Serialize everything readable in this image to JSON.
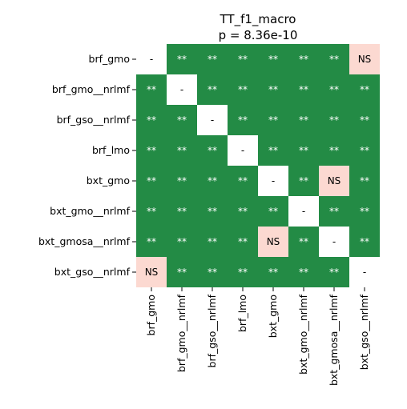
{
  "chart_data": {
    "type": "heatmap",
    "title": "TT_f1_macro",
    "subtitle": "p = 8.36e-10",
    "labels": [
      "brf_gmo",
      "brf_gmo__nrlmf",
      "brf_gso__nrlmf",
      "brf_lmo",
      "bxt_gmo",
      "bxt_gmo__nrlmf",
      "bxt_gmosa__nrlmf",
      "bxt_gso__nrlmf"
    ],
    "cells": [
      [
        "-",
        "**",
        "**",
        "**",
        "**",
        "**",
        "**",
        "NS"
      ],
      [
        "**",
        "-",
        "**",
        "**",
        "**",
        "**",
        "**",
        "**"
      ],
      [
        "**",
        "**",
        "-",
        "**",
        "**",
        "**",
        "**",
        "**"
      ],
      [
        "**",
        "**",
        "**",
        "-",
        "**",
        "**",
        "**",
        "**"
      ],
      [
        "**",
        "**",
        "**",
        "**",
        "-",
        "**",
        "NS",
        "**"
      ],
      [
        "**",
        "**",
        "**",
        "**",
        "**",
        "-",
        "**",
        "**"
      ],
      [
        "**",
        "**",
        "**",
        "**",
        "NS",
        "**",
        "-",
        "**"
      ],
      [
        "NS",
        "**",
        "**",
        "**",
        "**",
        "**",
        "**",
        "-"
      ]
    ],
    "colors": {
      "significant": "#238b45",
      "not_significant": "#fcd9d1",
      "diagonal": "#ffffff",
      "significant_text": "#ffffff",
      "other_text": "#000000"
    }
  }
}
